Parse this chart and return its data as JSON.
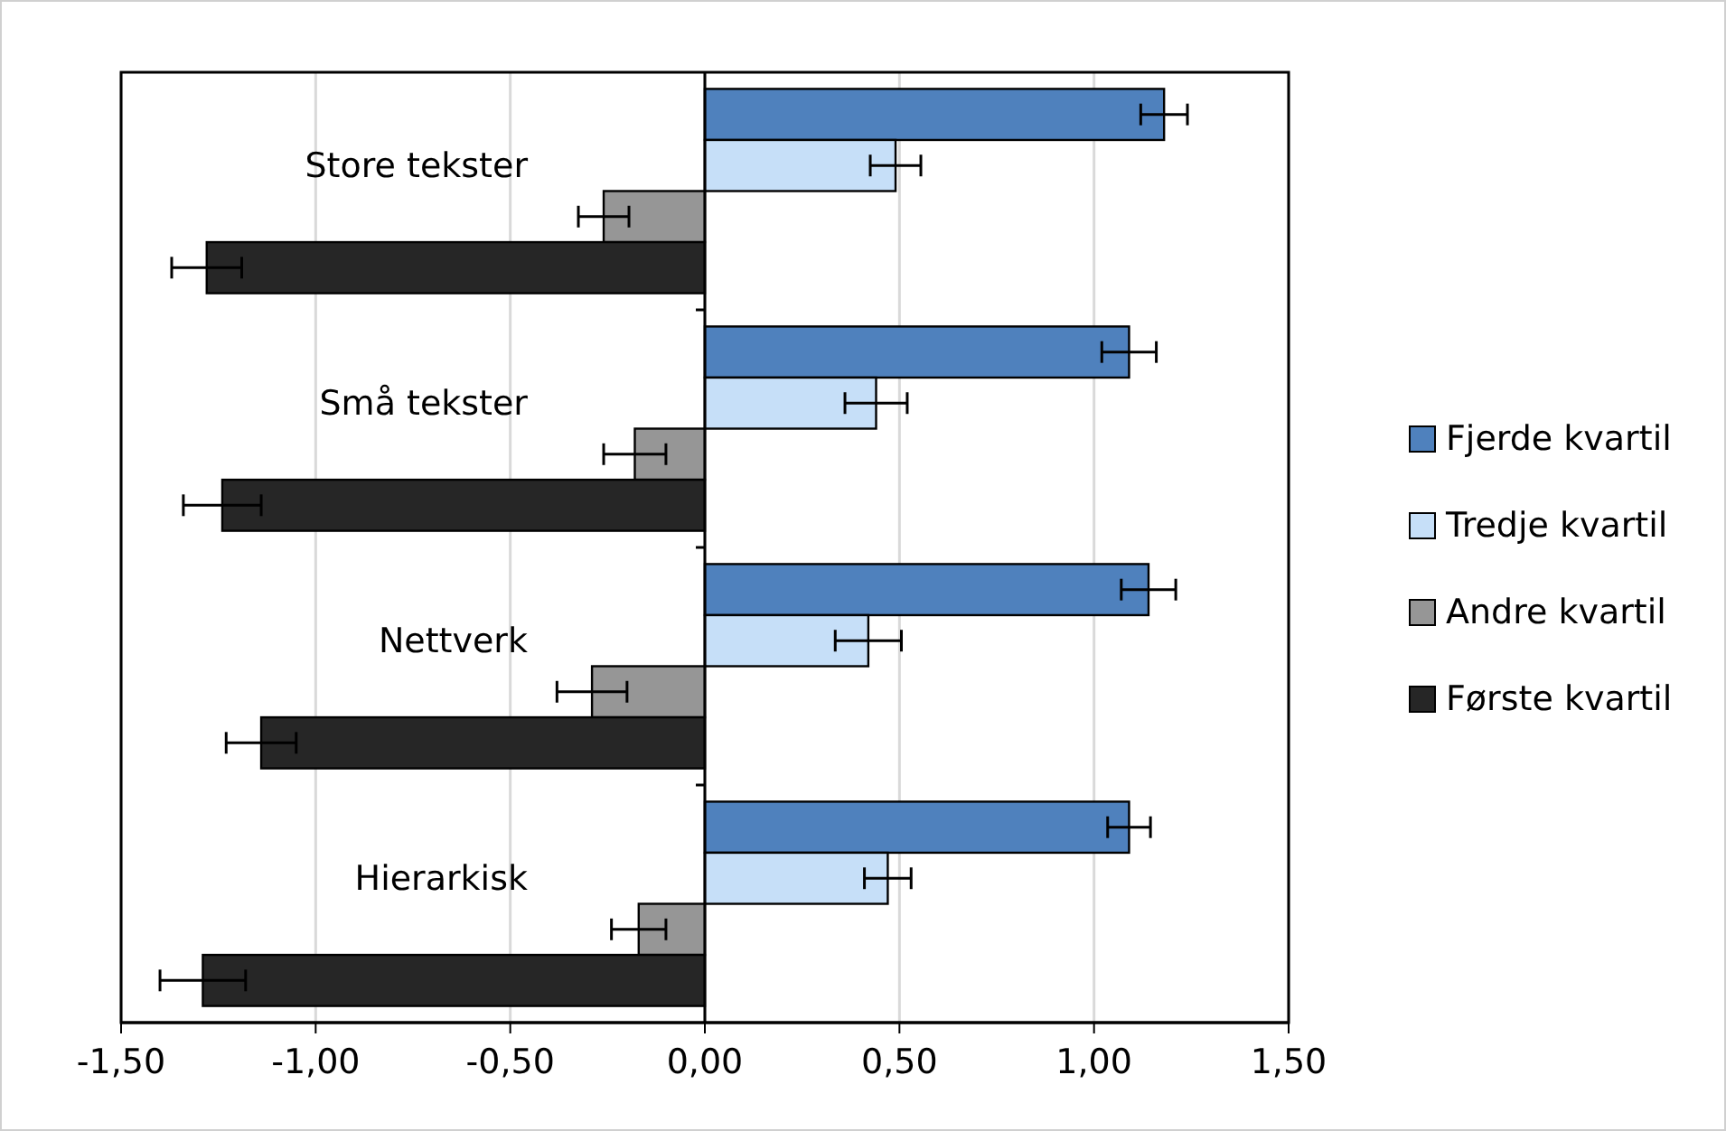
{
  "chart_data": {
    "type": "bar",
    "orientation": "horizontal",
    "categories": [
      "Store tekster",
      "Små tekster",
      "Nettverk",
      "Hierarkisk"
    ],
    "series": [
      {
        "name": "Fjerde kvartil",
        "color": "#4f81bd",
        "values": [
          1.18,
          1.09,
          1.14,
          1.09
        ],
        "errors": [
          0.06,
          0.07,
          0.07,
          0.055
        ]
      },
      {
        "name": "Tredje kvartil",
        "color": "#c6dff8",
        "values": [
          0.49,
          0.44,
          0.42,
          0.47
        ],
        "errors": [
          0.065,
          0.08,
          0.085,
          0.06
        ]
      },
      {
        "name": "Andre kvartil",
        "color": "#969696",
        "values": [
          -0.26,
          -0.18,
          -0.29,
          -0.17
        ],
        "errors": [
          0.065,
          0.08,
          0.09,
          0.07
        ]
      },
      {
        "name": "Første kvartil",
        "color": "#262626",
        "values": [
          -1.28,
          -1.24,
          -1.14,
          -1.29
        ],
        "errors": [
          0.09,
          0.1,
          0.09,
          0.11
        ]
      }
    ],
    "xlim": [
      -1.5,
      1.5
    ],
    "xticks": [
      {
        "value": -1.5,
        "label": "-1,50"
      },
      {
        "value": -1,
        "label": "-1,00"
      },
      {
        "value": -0.5,
        "label": "-0,50"
      },
      {
        "value": 0,
        "label": "0,00"
      },
      {
        "value": 0.5,
        "label": "0,50"
      },
      {
        "value": 1,
        "label": "1,00"
      },
      {
        "value": 1.5,
        "label": "1,50"
      }
    ],
    "grid": "x",
    "legend": "right"
  }
}
